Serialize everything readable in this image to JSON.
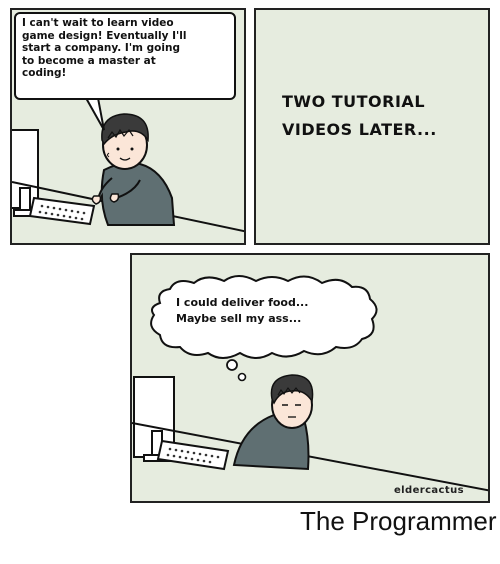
{
  "panels": [
    {
      "speech_lines": [
        "I can't wait to learn video",
        "game design! Eventually I'll",
        "start a company. I'm going",
        "to become a master at",
        "coding!"
      ]
    },
    {
      "caption_lines": [
        "TWO TUTORIAL",
        "VIDEOS LATER..."
      ]
    },
    {
      "thought_lines": [
        "I could deliver food...",
        "Maybe sell my ass..."
      ],
      "signature": "eldercactus"
    }
  ],
  "page_caption": "The Programmer",
  "colors": {
    "panel_bg": "#e6ecdf",
    "shirt": "#5f6f72",
    "hair": "#3a3a3a",
    "skin": "#fbe6d8",
    "outline": "#111111"
  }
}
